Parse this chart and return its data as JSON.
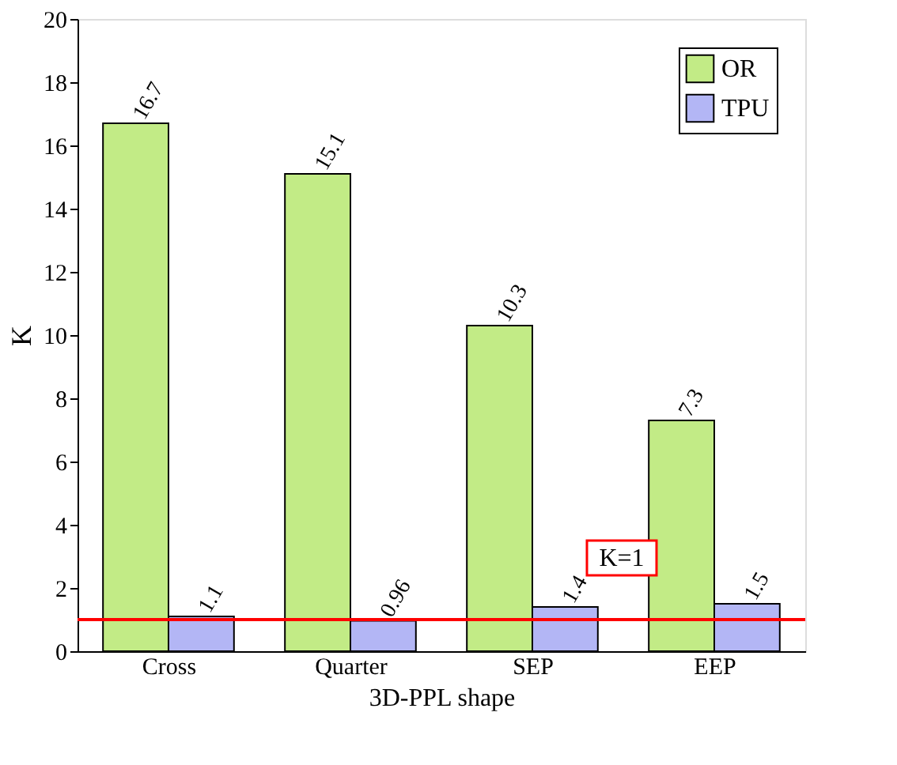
{
  "chart_data": {
    "type": "bar",
    "xlabel": "3D-PPL shape",
    "ylabel": "K",
    "categories": [
      "Cross",
      "Quarter",
      "SEP",
      "EEP"
    ],
    "series": [
      {
        "name": "OR",
        "color": "#c2eb86",
        "values": [
          16.7,
          15.1,
          10.3,
          7.3
        ]
      },
      {
        "name": "TPU",
        "color": "#b3b6f5",
        "values": [
          1.1,
          0.96,
          1.4,
          1.5
        ]
      }
    ],
    "ylim": [
      0,
      20
    ],
    "yticks": [
      0,
      2,
      4,
      6,
      8,
      10,
      12,
      14,
      16,
      18,
      20
    ],
    "data_labels": true,
    "legend": "top right",
    "grid": false,
    "ref_lines": [
      {
        "axis": "y",
        "value": 1,
        "label": "K=1",
        "color": "#ff0000"
      }
    ]
  }
}
